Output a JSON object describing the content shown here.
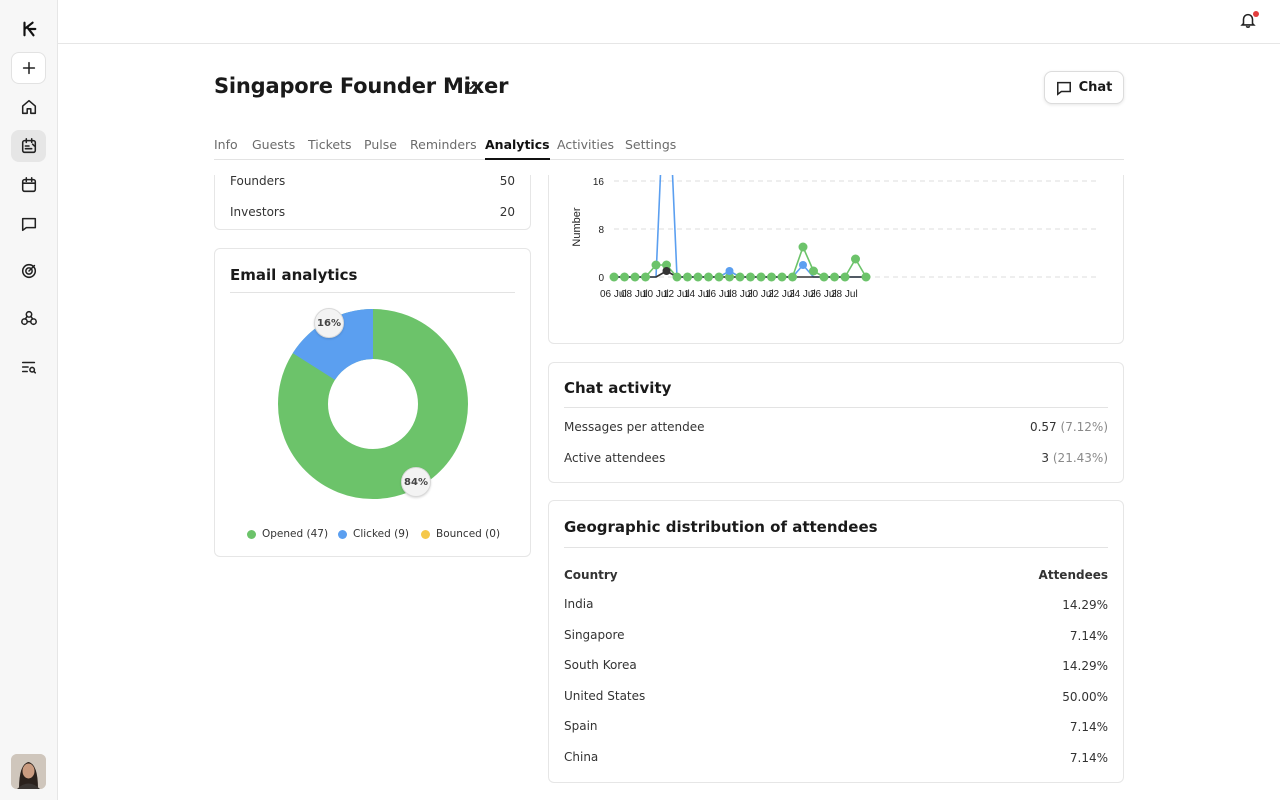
{
  "header": {
    "title": "Singapore Founder Mixer",
    "chat_label": "Chat"
  },
  "tabs": [
    {
      "label": "Info"
    },
    {
      "label": "Guests"
    },
    {
      "label": "Tickets"
    },
    {
      "label": "Pulse"
    },
    {
      "label": "Reminders"
    },
    {
      "label": "Analytics",
      "active": true
    },
    {
      "label": "Activities"
    },
    {
      "label": "Settings"
    }
  ],
  "guest_types": {
    "rows": [
      {
        "label": "Founders",
        "value": "50"
      },
      {
        "label": "Investors",
        "value": "20"
      }
    ]
  },
  "email_analytics": {
    "title": "Email analytics",
    "opened_pct_label": "84%",
    "clicked_pct_label": "16%",
    "legend": [
      {
        "label": "Opened (47)",
        "color": "#6cc36a"
      },
      {
        "label": "Clicked (9)",
        "color": "#5b9ff0"
      },
      {
        "label": "Bounced (0)",
        "color": "#f5c84b"
      }
    ]
  },
  "chart_data": {
    "type": "line",
    "ylabel": "Number",
    "y_ticks": [
      "0",
      "8",
      "16"
    ],
    "x_ticks": [
      "06 Jul",
      "08 Jul",
      "10 Jul",
      "12 Jul",
      "14 Jul",
      "16 Jul",
      "18 Jul",
      "20 Jul",
      "22 Jul",
      "24 Jul",
      "26 Jul",
      "28 Jul"
    ],
    "x_days": [
      6,
      7,
      8,
      9,
      10,
      11,
      12,
      13,
      14,
      15,
      16,
      17,
      18,
      19,
      20,
      21,
      22,
      23,
      24,
      25,
      26,
      27,
      28,
      29,
      30
    ],
    "series": [
      {
        "color": "#6cc36a",
        "values": [
          0,
          0,
          0,
          0,
          2,
          2,
          0,
          0,
          0,
          0,
          0,
          0,
          0,
          0,
          0,
          0,
          0,
          0,
          5,
          1,
          0,
          0,
          0,
          3,
          0
        ]
      },
      {
        "color": "#5b9ff0",
        "values": [
          0,
          0,
          0,
          0,
          0,
          40,
          0,
          0,
          0,
          0,
          0,
          1,
          0,
          0,
          0,
          0,
          0,
          0,
          2,
          0,
          0,
          0,
          0,
          0,
          0
        ]
      },
      {
        "color": "#333333",
        "values": [
          0,
          0,
          0,
          0,
          0,
          1,
          0,
          0,
          0,
          0,
          0,
          0,
          0,
          0,
          0,
          0,
          0,
          0,
          0,
          0,
          0,
          0,
          0,
          0,
          0
        ]
      }
    ]
  },
  "chat_activity": {
    "title": "Chat activity",
    "rows": [
      {
        "label": "Messages per attendee",
        "value": "0.57",
        "sub": "(7.12%)"
      },
      {
        "label": "Active attendees",
        "value": "3",
        "sub": "(21.43%)"
      }
    ]
  },
  "geo": {
    "title": "Geographic distribution of attendees",
    "col_country": "Country",
    "col_attendees": "Attendees",
    "rows": [
      {
        "country": "India",
        "value": "14.29%"
      },
      {
        "country": "Singapore",
        "value": "7.14%"
      },
      {
        "country": "South Korea",
        "value": "14.29%"
      },
      {
        "country": "United States",
        "value": "50.00%"
      },
      {
        "country": "Spain",
        "value": "7.14%"
      },
      {
        "country": "China",
        "value": "7.14%"
      }
    ]
  }
}
